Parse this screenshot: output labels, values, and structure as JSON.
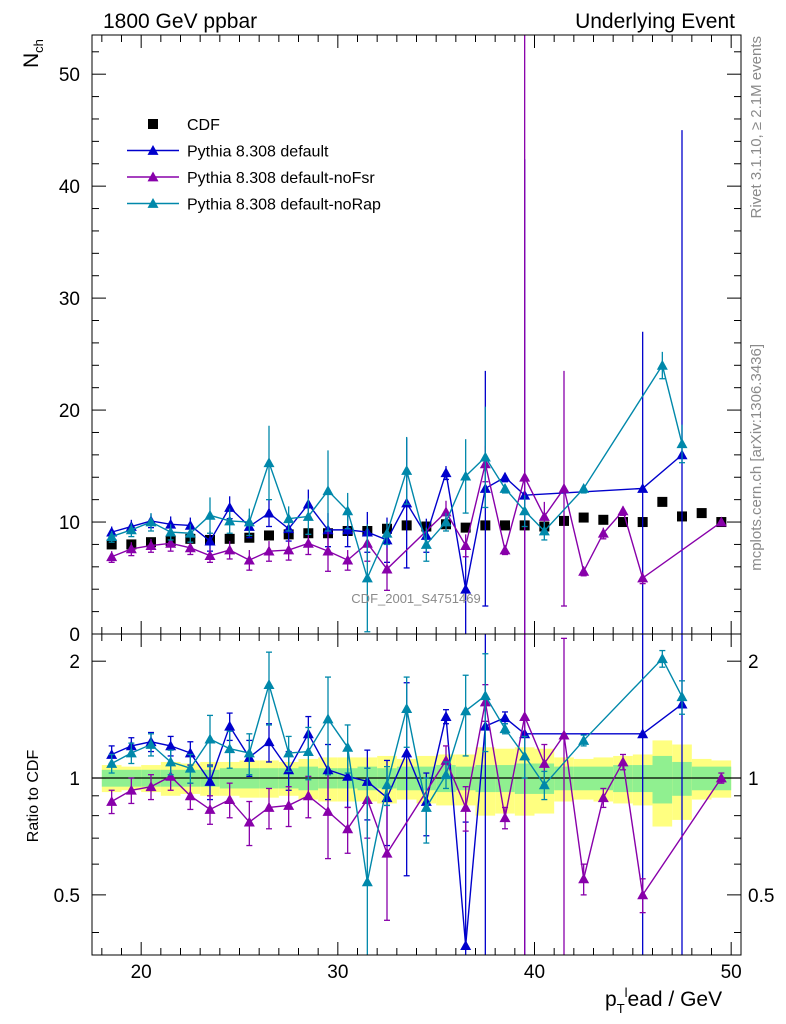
{
  "header": {
    "left": "1800 GeV ppbar",
    "right": "Underlying Event"
  },
  "side_labels": {
    "rivet": "Rivet 3.1.10, ≥ 2.1M events",
    "mcplots": "mcplots.cern.ch [arXiv:1306.3436]"
  },
  "watermark": "CDF_2001_S4751469",
  "chart_data": [
    {
      "type": "scatter",
      "panel": "main",
      "ylabel": "N_ch",
      "xlim": [
        17.5,
        50.5
      ],
      "ylim": [
        0,
        53.5
      ],
      "yticks": [
        0,
        10,
        20,
        30,
        40,
        50
      ],
      "legend_position": "upper-left",
      "x": [
        18.5,
        19.5,
        20.5,
        21.5,
        22.5,
        23.5,
        24.5,
        25.5,
        26.5,
        27.5,
        28.5,
        29.5,
        30.5,
        31.5,
        32.5,
        33.5,
        34.5,
        35.5,
        36.5,
        37.5,
        38.5,
        39.5,
        40.5,
        41.5,
        42.5,
        43.5,
        44.5,
        45.5,
        46.5,
        47.5,
        48.5,
        49.5
      ],
      "series": [
        {
          "name": "CDF",
          "color": "#000000",
          "marker": "square",
          "values": [
            8.0,
            8.0,
            8.2,
            8.3,
            8.5,
            8.4,
            8.5,
            8.6,
            8.8,
            8.9,
            9.0,
            9.0,
            9.2,
            9.2,
            9.4,
            9.7,
            9.6,
            9.8,
            9.5,
            9.7,
            9.7,
            9.7,
            9.6,
            10.1,
            10.4,
            10.2,
            10.0,
            10.0,
            11.8,
            10.5,
            10.8,
            10.0
          ],
          "errors": [
            0.2,
            0.2,
            0.2,
            0.2,
            0.2,
            0.2,
            0.2,
            0.2,
            0.2,
            0.2,
            0.2,
            0.2,
            0.2,
            0.2,
            0.2,
            0.2,
            0.2,
            0.2,
            0.2,
            0.2,
            0.2,
            0.2,
            0.2,
            0.2,
            0.2,
            0.2,
            0.2,
            0.2,
            0.2,
            0.2,
            0.2,
            0.2
          ]
        },
        {
          "name": "Pythia 8.308 default",
          "color": "#0000cc",
          "marker": "triangle",
          "values": [
            9.1,
            9.6,
            10.1,
            9.8,
            9.7,
            8.3,
            11.3,
            9.6,
            10.8,
            9.4,
            11.6,
            9.3,
            9.3,
            9.1,
            8.4,
            11.7,
            8.8,
            14.4,
            4.0,
            13.0,
            14.0,
            12.4,
            null,
            null,
            null,
            null,
            null,
            13.0,
            null,
            16.0,
            null,
            null
          ],
          "errors": [
            0.5,
            0.6,
            0.6,
            0.7,
            0.7,
            0.9,
            1.0,
            1.0,
            1.2,
            1.1,
            1.3,
            1.5,
            1.5,
            1.8,
            2.0,
            5.8,
            1.5,
            0.6,
            4.0,
            10.5,
            0.4,
            30.0,
            0,
            0,
            0,
            0,
            0,
            14.0,
            0,
            29.0,
            0,
            0
          ]
        },
        {
          "name": "Pythia 8.308 default-noFsr",
          "color": "#8800aa",
          "marker": "triangle",
          "values": [
            6.9,
            7.6,
            7.9,
            8.1,
            7.7,
            7.0,
            7.5,
            6.6,
            7.4,
            7.5,
            8.1,
            7.4,
            6.6,
            8.1,
            5.8,
            null,
            null,
            10.9,
            7.9,
            15.2,
            7.5,
            14.0,
            10.5,
            13.0,
            5.6,
            9.0,
            11.0,
            5.0,
            null,
            null,
            null,
            10.0
          ],
          "errors": [
            0.5,
            0.6,
            0.6,
            0.7,
            0.6,
            0.6,
            0.8,
            0.9,
            0.9,
            0.9,
            1.0,
            1.8,
            0.9,
            1.6,
            1.9,
            0,
            0,
            1.0,
            1.0,
            1.6,
            0.4,
            40.0,
            1.3,
            10.5,
            0.4,
            0.5,
            0.4,
            0.5,
            0,
            0,
            0,
            0.3
          ]
        },
        {
          "name": "Pythia 8.308 default-noRap",
          "color": "#0088aa",
          "marker": "triangle",
          "values": [
            8.7,
            9.3,
            10.0,
            9.1,
            9.0,
            10.6,
            10.1,
            10.0,
            15.3,
            10.3,
            10.5,
            12.8,
            11.0,
            5.0,
            9.0,
            14.6,
            8.0,
            10.0,
            14.1,
            15.8,
            13.0,
            11.0,
            9.2,
            null,
            13.0,
            null,
            null,
            null,
            24.0,
            17.0,
            null,
            null
          ],
          "errors": [
            0.5,
            0.6,
            0.8,
            0.7,
            0.8,
            1.6,
            1.1,
            1.2,
            3.3,
            1.1,
            1.6,
            3.6,
            1.6,
            4.8,
            1.0,
            3.0,
            1.5,
            0.8,
            3.3,
            4.5,
            0.4,
            1.4,
            0.8,
            0,
            0.4,
            0,
            0,
            0,
            1.2,
            1.7,
            0,
            0
          ]
        }
      ],
      "legend": [
        "CDF",
        "Pythia 8.308 default",
        "Pythia 8.308 default-noFsr",
        "Pythia 8.308 default-noRap"
      ]
    },
    {
      "type": "line",
      "panel": "ratio",
      "ylabel": "Ratio to CDF",
      "xlabel": "p_T^lead / GeV",
      "xlim": [
        17.5,
        50.5
      ],
      "ylim": [
        0.35,
        2.35
      ],
      "y_scale": "log",
      "yticks": [
        0.5,
        1,
        2
      ],
      "xticks": [
        20,
        30,
        40,
        50
      ],
      "x": [
        18.5,
        19.5,
        20.5,
        21.5,
        22.5,
        23.5,
        24.5,
        25.5,
        26.5,
        27.5,
        28.5,
        29.5,
        30.5,
        31.5,
        32.5,
        33.5,
        34.5,
        35.5,
        36.5,
        37.5,
        38.5,
        39.5,
        40.5,
        41.5,
        42.5,
        43.5,
        44.5,
        45.5,
        46.5,
        47.5,
        48.5,
        49.5
      ],
      "band_inner": [
        0.05,
        0.05,
        0.05,
        0.05,
        0.05,
        0.05,
        0.06,
        0.06,
        0.06,
        0.06,
        0.07,
        0.06,
        0.06,
        0.07,
        0.06,
        0.07,
        0.07,
        0.08,
        0.07,
        0.08,
        0.08,
        0.09,
        0.09,
        0.07,
        0.07,
        0.07,
        0.08,
        0.08,
        0.14,
        0.1,
        0.07,
        0.07
      ],
      "band_outer": [
        0.08,
        0.07,
        0.08,
        0.1,
        0.09,
        0.1,
        0.1,
        0.11,
        0.11,
        0.1,
        0.12,
        0.13,
        0.13,
        0.13,
        0.14,
        0.12,
        0.14,
        0.15,
        0.15,
        0.2,
        0.19,
        0.2,
        0.19,
        0.13,
        0.12,
        0.13,
        0.14,
        0.15,
        0.25,
        0.22,
        0.12,
        0.11
      ],
      "series": [
        {
          "name": "Pythia 8.308 default",
          "color": "#0000cc",
          "values": [
            1.15,
            1.21,
            1.24,
            1.21,
            1.16,
            0.98,
            1.36,
            1.13,
            1.24,
            1.05,
            1.3,
            1.05,
            1.01,
            0.98,
            0.89,
            1.16,
            0.87,
            1.44,
            0.37,
            1.36,
            1.43,
            1.3,
            null,
            null,
            null,
            null,
            null,
            1.3,
            null,
            1.55,
            null,
            null
          ],
          "errors": [
            0.06,
            0.06,
            0.07,
            0.07,
            0.08,
            0.1,
            0.11,
            0.12,
            0.14,
            0.12,
            0.14,
            0.17,
            0.17,
            0.2,
            0.22,
            0.6,
            0.16,
            0.06,
            0.4,
            1.1,
            0.05,
            3.0,
            0,
            0,
            0,
            0,
            0,
            1.4,
            0,
            2.8,
            0,
            0
          ]
        },
        {
          "name": "Pythia 8.308 default-noFsr",
          "color": "#8800aa",
          "values": [
            0.87,
            0.93,
            0.95,
            1.01,
            0.9,
            0.83,
            0.88,
            0.77,
            0.84,
            0.85,
            0.9,
            0.82,
            0.74,
            0.88,
            0.64,
            null,
            null,
            1.11,
            0.84,
            1.57,
            0.79,
            1.44,
            1.09,
            1.29,
            0.55,
            0.89,
            1.1,
            0.5,
            null,
            null,
            null,
            1.0
          ],
          "errors": [
            0.06,
            0.07,
            0.07,
            0.08,
            0.07,
            0.07,
            0.09,
            0.1,
            0.1,
            0.1,
            0.11,
            0.2,
            0.1,
            0.18,
            0.21,
            0,
            0,
            0.1,
            0.11,
            0.17,
            0.05,
            4.0,
            0.13,
            1.0,
            0.05,
            0.05,
            0.05,
            0.05,
            0,
            0,
            0,
            0.03
          ]
        },
        {
          "name": "Pythia 8.308 default-noRap",
          "color": "#0088aa",
          "values": [
            1.09,
            1.16,
            1.22,
            1.1,
            1.06,
            1.26,
            1.19,
            1.16,
            1.74,
            1.16,
            1.17,
            1.42,
            1.2,
            0.54,
            0.96,
            1.51,
            0.84,
            1.02,
            1.49,
            1.63,
            1.34,
            1.14,
            0.96,
            null,
            1.25,
            null,
            null,
            null,
            2.03,
            1.62,
            null,
            null
          ],
          "errors": [
            0.06,
            0.07,
            0.08,
            0.08,
            0.09,
            0.19,
            0.13,
            0.14,
            0.37,
            0.12,
            0.18,
            0.4,
            0.17,
            0.52,
            0.11,
            0.31,
            0.16,
            0.08,
            0.35,
            0.46,
            0.04,
            0.14,
            0.08,
            0,
            0.04,
            0,
            0,
            0,
            0.1,
            0.16,
            0,
            0
          ]
        }
      ]
    }
  ]
}
